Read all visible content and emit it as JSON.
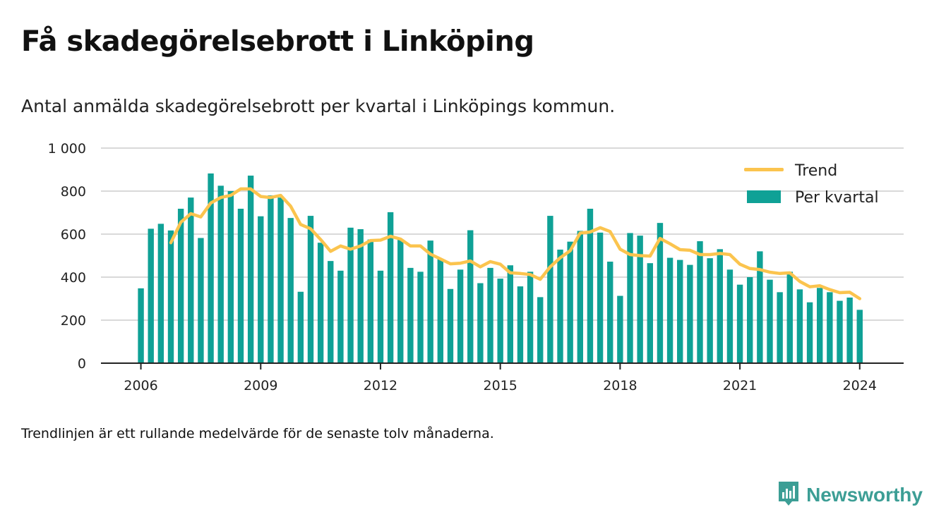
{
  "title": "Få skadegörelsebrott i Linköping",
  "subtitle": "Antal anmälda skadegörelsebrott per kvartal i Linköpings kommun.",
  "note": "Trendlinjen är ett rullande medelvärde för de senaste tolv månaderna.",
  "brand": {
    "name": "Newsworthy",
    "icon": "newsworthy-logo-icon"
  },
  "colors": {
    "bar": "#0fa196",
    "trend": "#fbc44e",
    "grid": "#d9d9d9",
    "axis": "#222222",
    "brand": "#3c9e95"
  },
  "chart_data": {
    "type": "bar",
    "xlabel": "",
    "ylabel": "",
    "ylim": [
      0,
      1000
    ],
    "yticks": [
      0,
      200,
      400,
      600,
      800,
      1000
    ],
    "ytick_labels": [
      "0",
      "200",
      "400",
      "600",
      "800",
      "1 000"
    ],
    "xticks": [
      2006,
      2009,
      2012,
      2015,
      2018,
      2021,
      2024
    ],
    "xtick_labels": [
      "2006",
      "2009",
      "2012",
      "2015",
      "2018",
      "2021",
      "2024"
    ],
    "xlim": [
      2005,
      2025.1
    ],
    "grid": "horizontal",
    "legend_position": "top-right",
    "legend": [
      "Trend",
      "Per kvartal"
    ],
    "series": [
      {
        "name": "Per kvartal",
        "kind": "bar",
        "x": [
          2006.0,
          2006.25,
          2006.5,
          2006.75,
          2007.0,
          2007.25,
          2007.5,
          2007.75,
          2008.0,
          2008.25,
          2008.5,
          2008.75,
          2009.0,
          2009.25,
          2009.5,
          2009.75,
          2010.0,
          2010.25,
          2010.5,
          2010.75,
          2011.0,
          2011.25,
          2011.5,
          2011.75,
          2012.0,
          2012.25,
          2012.5,
          2012.75,
          2013.0,
          2013.25,
          2013.5,
          2013.75,
          2014.0,
          2014.25,
          2014.5,
          2014.75,
          2015.0,
          2015.25,
          2015.5,
          2015.75,
          2016.0,
          2016.25,
          2016.5,
          2016.75,
          2017.0,
          2017.25,
          2017.5,
          2017.75,
          2018.0,
          2018.25,
          2018.5,
          2018.75,
          2019.0,
          2019.25,
          2019.5,
          2019.75,
          2020.0,
          2020.25,
          2020.5,
          2020.75,
          2021.0,
          2021.25,
          2021.5,
          2021.75,
          2022.0,
          2022.25,
          2022.5,
          2022.75,
          2023.0,
          2023.25,
          2023.5,
          2023.75,
          2024.0
        ],
        "values": [
          348,
          625,
          648,
          617,
          718,
          770,
          582,
          882,
          825,
          800,
          718,
          872,
          683,
          780,
          770,
          675,
          332,
          685,
          560,
          475,
          430,
          630,
          623,
          575,
          430,
          702,
          577,
          443,
          425,
          570,
          485,
          345,
          435,
          618,
          372,
          443,
          393,
          455,
          357,
          425,
          307,
          685,
          528,
          565,
          615,
          718,
          607,
          472,
          313,
          605,
          593,
          465,
          652,
          490,
          480,
          457,
          567,
          488,
          530,
          435,
          365,
          400,
          520,
          388,
          330,
          425,
          343,
          283,
          350,
          330,
          290,
          305,
          248
        ]
      },
      {
        "name": "Trend",
        "kind": "line",
        "x": [
          2006.75,
          2007.0,
          2007.25,
          2007.5,
          2007.75,
          2008.0,
          2008.25,
          2008.5,
          2008.75,
          2009.0,
          2009.25,
          2009.5,
          2009.75,
          2010.0,
          2010.25,
          2010.5,
          2010.75,
          2011.0,
          2011.25,
          2011.5,
          2011.75,
          2012.0,
          2012.25,
          2012.5,
          2012.75,
          2013.0,
          2013.25,
          2013.5,
          2013.75,
          2014.0,
          2014.25,
          2014.5,
          2014.75,
          2015.0,
          2015.25,
          2015.5,
          2015.75,
          2016.0,
          2016.25,
          2016.5,
          2016.75,
          2017.0,
          2017.25,
          2017.5,
          2017.75,
          2018.0,
          2018.25,
          2018.5,
          2018.75,
          2019.0,
          2019.25,
          2019.5,
          2019.75,
          2020.0,
          2020.25,
          2020.5,
          2020.75,
          2021.0,
          2021.25,
          2021.5,
          2021.75,
          2022.0,
          2022.25,
          2022.5,
          2022.75,
          2023.0,
          2023.25,
          2023.5,
          2023.75,
          2024.0
        ],
        "values": [
          560,
          655,
          695,
          680,
          745,
          770,
          780,
          810,
          810,
          775,
          770,
          780,
          730,
          645,
          625,
          575,
          520,
          545,
          530,
          545,
          570,
          572,
          590,
          577,
          545,
          545,
          507,
          485,
          462,
          465,
          475,
          448,
          472,
          460,
          420,
          417,
          412,
          390,
          448,
          490,
          523,
          605,
          610,
          630,
          612,
          530,
          505,
          500,
          498,
          580,
          555,
          528,
          525,
          505,
          505,
          510,
          505,
          460,
          440,
          435,
          423,
          417,
          420,
          380,
          355,
          360,
          342,
          328,
          330,
          300
        ]
      }
    ]
  }
}
